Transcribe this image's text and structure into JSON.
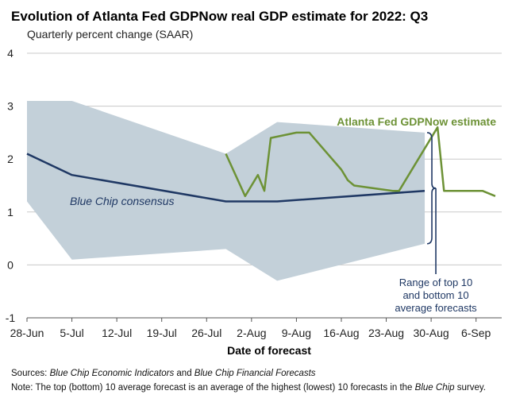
{
  "chart_data": {
    "type": "line",
    "title": "Evolution of Atlanta Fed GDPNow real GDP estimate for 2022: Q3",
    "subtitle": "Quarterly percent change (SAAR)",
    "xlabel": "Date of forecast",
    "ylabel": "",
    "ylim": [
      -1,
      4
    ],
    "yticks": [
      -1,
      0,
      1,
      2,
      3,
      4
    ],
    "xlim": [
      "2022-06-28",
      "2022-09-10"
    ],
    "xticks": [
      {
        "date": "2022-06-28",
        "label": "28-Jun"
      },
      {
        "date": "2022-07-05",
        "label": "5-Jul"
      },
      {
        "date": "2022-07-12",
        "label": "12-Jul"
      },
      {
        "date": "2022-07-19",
        "label": "19-Jul"
      },
      {
        "date": "2022-07-26",
        "label": "26-Jul"
      },
      {
        "date": "2022-08-02",
        "label": "2-Aug"
      },
      {
        "date": "2022-08-09",
        "label": "9-Aug"
      },
      {
        "date": "2022-08-16",
        "label": "16-Aug"
      },
      {
        "date": "2022-08-23",
        "label": "23-Aug"
      },
      {
        "date": "2022-08-30",
        "label": "30-Aug"
      },
      {
        "date": "2022-09-06",
        "label": "6-Sep"
      }
    ],
    "grid": "horizontal",
    "range_band": {
      "upper": [
        {
          "x": "2022-06-28",
          "y": 3.1
        },
        {
          "x": "2022-07-05",
          "y": 3.1
        },
        {
          "x": "2022-07-29",
          "y": 2.1
        },
        {
          "x": "2022-08-06",
          "y": 2.7
        },
        {
          "x": "2022-08-29",
          "y": 2.5
        }
      ],
      "lower": [
        {
          "x": "2022-06-28",
          "y": 1.2
        },
        {
          "x": "2022-07-05",
          "y": 0.1
        },
        {
          "x": "2022-07-29",
          "y": 0.3
        },
        {
          "x": "2022-08-06",
          "y": -0.3
        },
        {
          "x": "2022-08-29",
          "y": 0.4
        }
      ]
    },
    "series": [
      {
        "name": "Blue Chip consensus",
        "points": [
          {
            "x": "2022-06-28",
            "y": 2.1
          },
          {
            "x": "2022-07-05",
            "y": 1.7
          },
          {
            "x": "2022-07-29",
            "y": 1.2
          },
          {
            "x": "2022-08-06",
            "y": 1.2
          },
          {
            "x": "2022-08-29",
            "y": 1.4
          }
        ]
      },
      {
        "name": "Atlanta Fed GDPNow estimate",
        "points": [
          {
            "x": "2022-07-29",
            "y": 2.1
          },
          {
            "x": "2022-08-01",
            "y": 1.3
          },
          {
            "x": "2022-08-03",
            "y": 1.7
          },
          {
            "x": "2022-08-04",
            "y": 1.4
          },
          {
            "x": "2022-08-05",
            "y": 2.4
          },
          {
            "x": "2022-08-09",
            "y": 2.5
          },
          {
            "x": "2022-08-11",
            "y": 2.5
          },
          {
            "x": "2022-08-16",
            "y": 1.8
          },
          {
            "x": "2022-08-17",
            "y": 1.6
          },
          {
            "x": "2022-08-18",
            "y": 1.5
          },
          {
            "x": "2022-08-24",
            "y": 1.4
          },
          {
            "x": "2022-08-25",
            "y": 1.4
          },
          {
            "x": "2022-08-26",
            "y": 1.6
          },
          {
            "x": "2022-08-31",
            "y": 2.6
          },
          {
            "x": "2022-09-01",
            "y": 1.4
          },
          {
            "x": "2022-09-07",
            "y": 1.4
          },
          {
            "x": "2022-09-09",
            "y": 1.3
          }
        ]
      }
    ],
    "annotations": {
      "gdpnow": "Atlanta Fed GDPNow estimate",
      "bluechip": "Blue Chip consensus",
      "range_lines": [
        "Range of top 10",
        "and bottom 10",
        "average forecasts"
      ]
    },
    "colors": {
      "band": "#c3d0d9",
      "bluechip": "#1f3864",
      "gdpnow": "#6d9236",
      "grid": "#c8c8c8",
      "axis": "#555555",
      "range_text": "#1f3864"
    }
  },
  "footnotes": {
    "sources_label": "Sources:",
    "sources_part1": "Blue Chip Economic Indicators",
    "sources_and": "and",
    "sources_part2": "Blue Chip Financial Forecasts",
    "note_label": "Note:",
    "note_text": "The top (bottom) 10 average forecast is an average of the highest (lowest) 10 forecasts in the",
    "note_italic": "Blue Chip",
    "note_end": "survey."
  }
}
